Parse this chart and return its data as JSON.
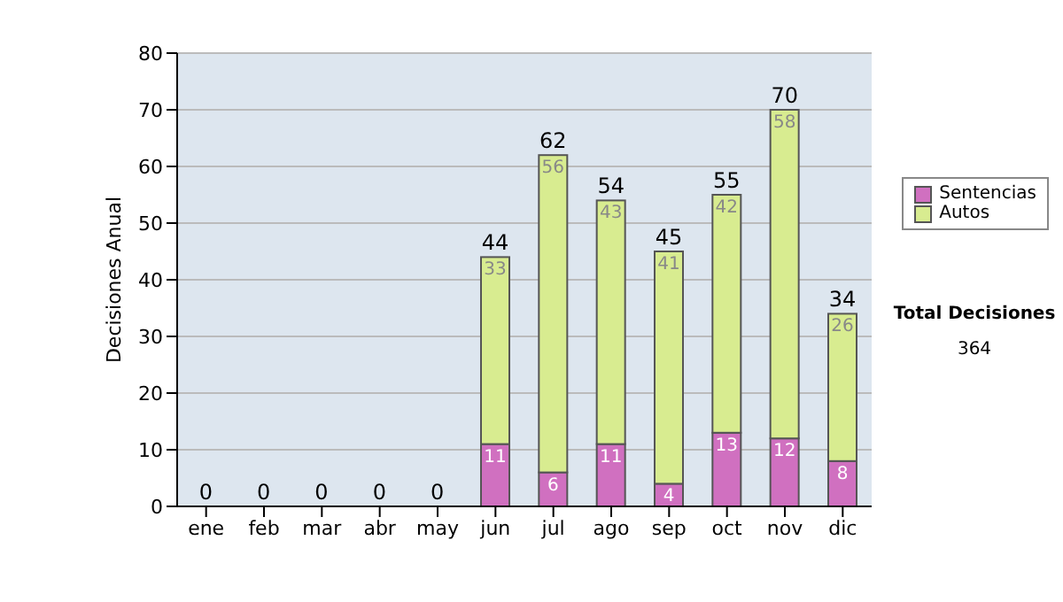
{
  "chart_data": {
    "type": "bar",
    "ylabel": "Decisiones Anual",
    "categories": [
      "ene",
      "feb",
      "mar",
      "abr",
      "may",
      "jun",
      "jul",
      "ago",
      "sep",
      "oct",
      "nov",
      "dic"
    ],
    "series": [
      {
        "name": "Sentencias",
        "color": "#d070c0",
        "values": [
          0,
          0,
          0,
          0,
          0,
          11,
          6,
          11,
          4,
          13,
          12,
          8
        ],
        "value_labels": [
          null,
          null,
          null,
          null,
          null,
          "11",
          "6",
          "11",
          "4",
          "13",
          "12",
          "8"
        ]
      },
      {
        "name": "Autos",
        "color": "#d8ec90",
        "values": [
          0,
          0,
          0,
          0,
          0,
          33,
          56,
          43,
          41,
          42,
          58,
          26
        ],
        "value_labels": [
          null,
          null,
          null,
          null,
          null,
          "33",
          "56",
          "43",
          "41",
          "42",
          "58",
          "26"
        ]
      }
    ],
    "stacked": true,
    "totals": [
      "0",
      "0",
      "0",
      "0",
      "0",
      "44",
      "62",
      "54",
      "45",
      "55",
      "70",
      "34"
    ],
    "ylim": [
      0,
      80
    ],
    "yticks": [
      0,
      10,
      20,
      30,
      40,
      50,
      60,
      70,
      80
    ],
    "grid": "y",
    "legend": "right",
    "annotations": [
      "Total Decisiones",
      "364"
    ]
  }
}
